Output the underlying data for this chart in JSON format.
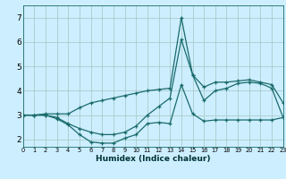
{
  "title": "",
  "xlabel": "Humidex (Indice chaleur)",
  "background_color": "#cceeff",
  "grid_color": "#aacccc",
  "line_color": "#1a6b6b",
  "xlim": [
    0,
    23
  ],
  "ylim": [
    1.7,
    7.5
  ],
  "xticks": [
    0,
    1,
    2,
    3,
    4,
    5,
    6,
    7,
    8,
    9,
    10,
    11,
    12,
    13,
    14,
    15,
    16,
    17,
    18,
    19,
    20,
    21,
    22,
    23
  ],
  "yticks": [
    2,
    3,
    4,
    5,
    6,
    7
  ],
  "line1_x": [
    0,
    1,
    2,
    3,
    4,
    5,
    6,
    7,
    8,
    9,
    10,
    11,
    12,
    13,
    14,
    15,
    16,
    17,
    18,
    19,
    20,
    21,
    22,
    23
  ],
  "line1_y": [
    3.0,
    3.0,
    3.0,
    2.85,
    2.6,
    2.2,
    1.9,
    1.85,
    1.85,
    2.05,
    2.2,
    2.65,
    2.7,
    2.65,
    4.25,
    3.05,
    2.75,
    2.8,
    2.8,
    2.8,
    2.8,
    2.8,
    2.8,
    2.9
  ],
  "line2_x": [
    0,
    1,
    2,
    3,
    4,
    5,
    6,
    7,
    8,
    9,
    10,
    11,
    12,
    13,
    14,
    15,
    16,
    17,
    18,
    19,
    20,
    21,
    22,
    23
  ],
  "line2_y": [
    3.0,
    3.0,
    3.0,
    2.9,
    2.65,
    2.45,
    2.3,
    2.2,
    2.2,
    2.3,
    2.55,
    3.0,
    3.35,
    3.7,
    6.1,
    4.65,
    3.6,
    4.0,
    4.1,
    4.3,
    4.35,
    4.3,
    4.1,
    2.9
  ],
  "line3_x": [
    0,
    1,
    2,
    3,
    4,
    5,
    6,
    7,
    8,
    9,
    10,
    11,
    12,
    13,
    14,
    15,
    16,
    17,
    18,
    19,
    20,
    21,
    22,
    23
  ],
  "line3_y": [
    3.0,
    3.0,
    3.05,
    3.05,
    3.05,
    3.3,
    3.5,
    3.6,
    3.7,
    3.8,
    3.9,
    4.0,
    4.05,
    4.1,
    7.0,
    4.65,
    4.15,
    4.35,
    4.35,
    4.4,
    4.45,
    4.35,
    4.25,
    3.5
  ]
}
